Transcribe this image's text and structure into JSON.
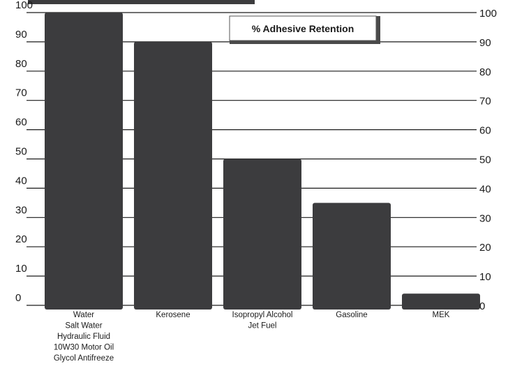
{
  "chart_data": {
    "type": "bar",
    "legend": "% Adhesive Retention",
    "categories": [
      [
        "Water",
        "Salt Water",
        "Hydraulic Fluid",
        "10W30 Motor Oil",
        "Glycol Antifreeze"
      ],
      [
        "Kerosene"
      ],
      [
        "Isopropyl Alcohol",
        "Jet Fuel"
      ],
      [
        "Gasoline"
      ],
      [
        "MEK"
      ]
    ],
    "values": [
      100,
      90,
      50,
      35,
      4
    ],
    "ylim": [
      0,
      100
    ],
    "left_ticks": [
      "0",
      "10",
      "20",
      "30",
      "40",
      "50",
      "60",
      "70",
      "80",
      "90",
      "100"
    ],
    "right_ticks": [
      "0",
      "10",
      "20",
      "30",
      "40",
      "50",
      "60",
      "70",
      "80",
      "90",
      "100"
    ],
    "grid": true,
    "colors": {
      "bar": "#3c3c3e",
      "grid": "#1a1a1a",
      "background": "#ffffff"
    }
  }
}
